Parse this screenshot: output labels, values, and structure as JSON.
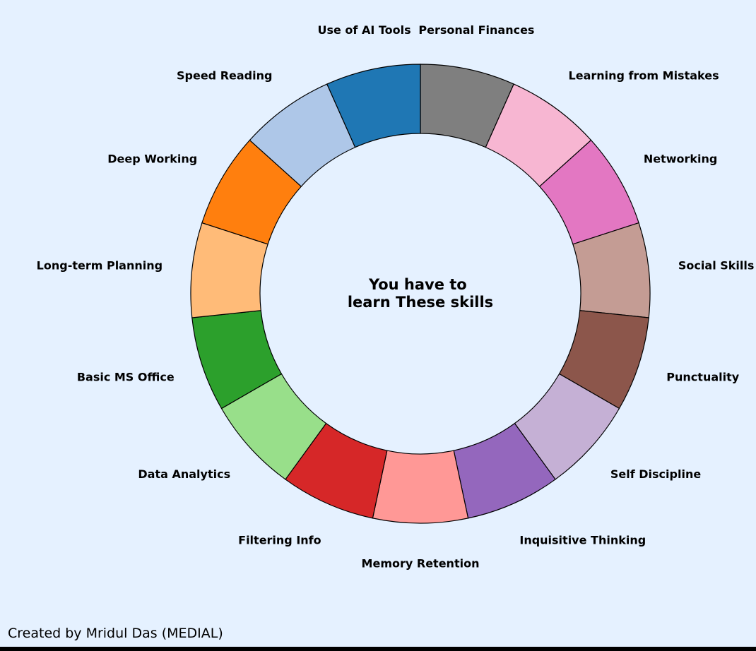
{
  "chart_data": {
    "type": "pie",
    "variant": "donut",
    "center_text": [
      "You have to",
      "learn These skills"
    ],
    "categories": [
      "Personal Finances",
      "Learning from Mistakes",
      "Networking",
      "Social Skills",
      "Punctuality",
      "Self Discipline",
      "Inquisitive Thinking",
      "Memory Retention",
      "Filtering Info",
      "Data Analytics",
      "Basic MS Office",
      "Long-term Planning",
      "Deep Working",
      "Speed Reading",
      "Use of AI Tools"
    ],
    "values": [
      1,
      1,
      1,
      1,
      1,
      1,
      1,
      1,
      1,
      1,
      1,
      1,
      1,
      1,
      1
    ],
    "colors": [
      "#7f7f7f",
      "#f7b6d2",
      "#e377c2",
      "#c49c94",
      "#8c564b",
      "#c5b0d5",
      "#9467bd",
      "#ff9896",
      "#d62728",
      "#98df8a",
      "#2ca02c",
      "#ffbb78",
      "#ff7f0e",
      "#aec7e8",
      "#1f77b4"
    ],
    "start_angle": "top",
    "direction": "clockwise"
  },
  "footer": {
    "credit": "Created by Mridul Das (MEDIAL)"
  },
  "style": {
    "background": "#e5f1ff",
    "edge_color": "#000000"
  }
}
